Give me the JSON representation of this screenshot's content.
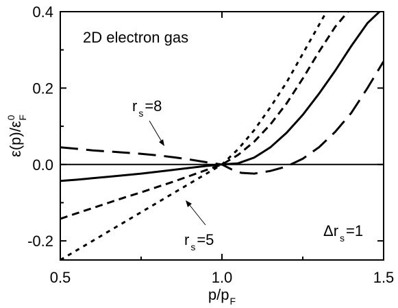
{
  "chart_data": {
    "type": "line",
    "title": "2D electron gas",
    "xlabel": {
      "main": "p/p",
      "sub": "F"
    },
    "ylabel": {
      "main": "ε(p)/ε",
      "sup": "0",
      "sub": "F"
    },
    "xlim": [
      0.5,
      1.5
    ],
    "ylim": [
      -0.25,
      0.4
    ],
    "xticks": [
      0.5,
      1.0,
      1.5
    ],
    "xtick_labels": [
      "0.5",
      "1.0",
      "1.5"
    ],
    "yticks": [
      -0.2,
      0.0,
      0.2,
      0.4
    ],
    "ytick_labels": [
      "-0.2",
      "0.0",
      "0.2",
      "0.4"
    ],
    "grid": false,
    "zero_line": true,
    "annotations": {
      "rs8": {
        "main": "r",
        "sub": "s",
        "tail": "=8"
      },
      "rs5": {
        "main": "r",
        "sub": "s",
        "tail": "=5"
      },
      "delta": {
        "main": "Δr",
        "sub": "s",
        "tail": "=1"
      }
    },
    "series": [
      {
        "style": "long-dash",
        "points": [
          [
            0.5,
            0.045
          ],
          [
            0.55,
            0.041
          ],
          [
            0.6,
            0.037
          ],
          [
            0.65,
            0.034
          ],
          [
            0.7,
            0.031
          ],
          [
            0.75,
            0.028
          ],
          [
            0.8,
            0.024
          ],
          [
            0.85,
            0.019
          ],
          [
            0.9,
            0.013
          ],
          [
            0.95,
            0.006
          ],
          [
            1.0,
            0.0
          ],
          [
            1.03,
            -0.013
          ],
          [
            1.06,
            -0.022
          ],
          [
            1.1,
            -0.024
          ],
          [
            1.15,
            -0.017
          ],
          [
            1.2,
            -0.005
          ],
          [
            1.25,
            0.015
          ],
          [
            1.3,
            0.045
          ],
          [
            1.35,
            0.085
          ],
          [
            1.4,
            0.135
          ],
          [
            1.45,
            0.2
          ],
          [
            1.5,
            0.27
          ]
        ]
      },
      {
        "style": "solid",
        "points": [
          [
            0.5,
            -0.043
          ],
          [
            0.55,
            -0.04
          ],
          [
            0.6,
            -0.036
          ],
          [
            0.65,
            -0.032
          ],
          [
            0.7,
            -0.028
          ],
          [
            0.75,
            -0.024
          ],
          [
            0.8,
            -0.019
          ],
          [
            0.85,
            -0.014
          ],
          [
            0.9,
            -0.009
          ],
          [
            0.95,
            -0.004
          ],
          [
            1.0,
            0.0
          ],
          [
            1.05,
            0.003
          ],
          [
            1.1,
            0.018
          ],
          [
            1.15,
            0.045
          ],
          [
            1.2,
            0.083
          ],
          [
            1.25,
            0.13
          ],
          [
            1.3,
            0.185
          ],
          [
            1.35,
            0.245
          ],
          [
            1.4,
            0.31
          ],
          [
            1.45,
            0.37
          ],
          [
            1.5,
            0.41
          ]
        ]
      },
      {
        "style": "dash",
        "points": [
          [
            0.5,
            -0.142
          ],
          [
            0.55,
            -0.128
          ],
          [
            0.6,
            -0.114
          ],
          [
            0.65,
            -0.1
          ],
          [
            0.7,
            -0.086
          ],
          [
            0.75,
            -0.073
          ],
          [
            0.8,
            -0.059
          ],
          [
            0.85,
            -0.045
          ],
          [
            0.9,
            -0.03
          ],
          [
            0.95,
            -0.015
          ],
          [
            1.0,
            0.0
          ],
          [
            1.05,
            0.025
          ],
          [
            1.1,
            0.06
          ],
          [
            1.15,
            0.105
          ],
          [
            1.2,
            0.16
          ],
          [
            1.25,
            0.225
          ],
          [
            1.3,
            0.295
          ],
          [
            1.35,
            0.36
          ],
          [
            1.4,
            0.41
          ]
        ]
      },
      {
        "style": "short-dash",
        "points": [
          [
            0.5,
            -0.25
          ],
          [
            0.55,
            -0.225
          ],
          [
            0.6,
            -0.2
          ],
          [
            0.65,
            -0.175
          ],
          [
            0.7,
            -0.15
          ],
          [
            0.75,
            -0.125
          ],
          [
            0.8,
            -0.1
          ],
          [
            0.85,
            -0.075
          ],
          [
            0.9,
            -0.05
          ],
          [
            0.95,
            -0.025
          ],
          [
            1.0,
            0.0
          ],
          [
            1.05,
            0.04
          ],
          [
            1.1,
            0.09
          ],
          [
            1.15,
            0.15
          ],
          [
            1.2,
            0.215
          ],
          [
            1.25,
            0.29
          ],
          [
            1.3,
            0.365
          ],
          [
            1.33,
            0.41
          ]
        ]
      }
    ]
  }
}
